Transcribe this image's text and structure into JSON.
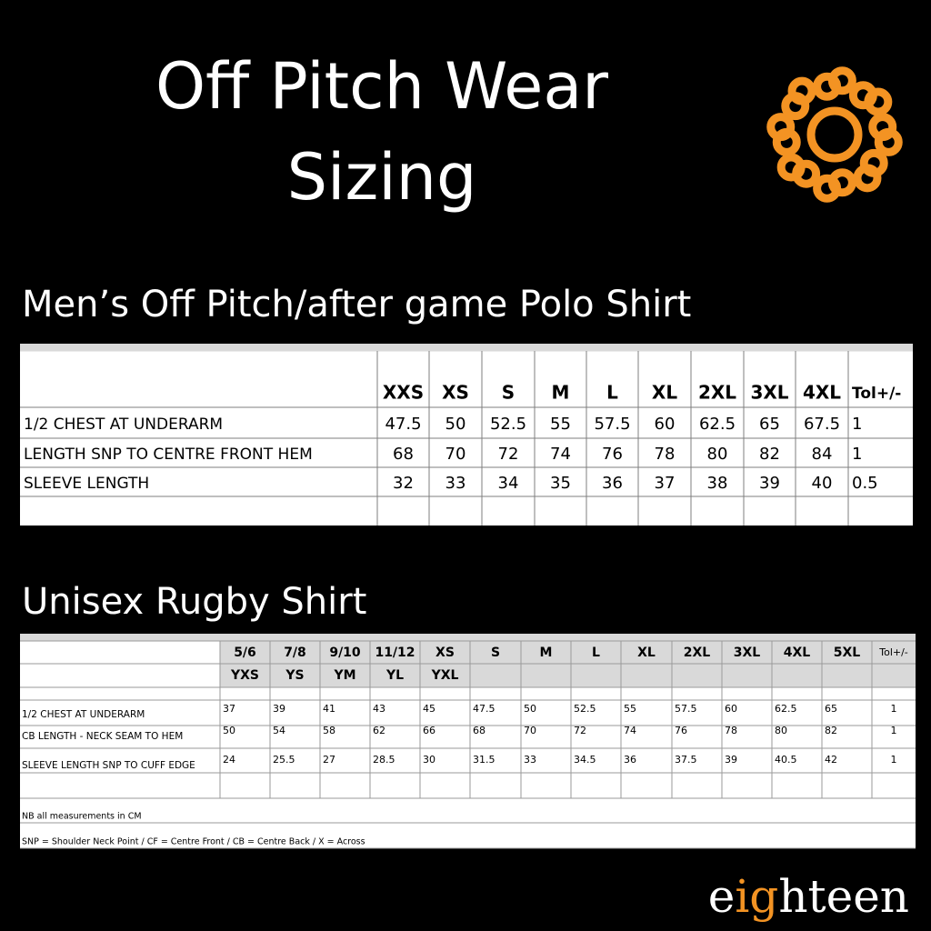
{
  "header": {
    "title_lines": [
      "Off Pitch Wear",
      "Sizing"
    ]
  },
  "tables": [
    {
      "title": "Men’s Off Pitch/after game Polo Shirt",
      "columns": [
        "XXS",
        "XS",
        "S",
        "M",
        "L",
        "XL",
        "2XL",
        "3XL",
        "4XL",
        "Tol+/-"
      ],
      "rows": [
        {
          "label": "1/2 CHEST AT UNDERARM",
          "values": [
            47.5,
            50,
            52.5,
            55,
            57.5,
            60,
            62.5,
            65,
            67.5,
            1
          ]
        },
        {
          "label": "LENGTH SNP TO CENTRE FRONT HEM",
          "values": [
            68,
            70,
            72,
            74,
            76,
            78,
            80,
            82,
            84,
            1
          ]
        },
        {
          "label": "SLEEVE LENGTH",
          "values": [
            32,
            33,
            34,
            35,
            36,
            37,
            38,
            39,
            40,
            0.5
          ]
        }
      ]
    },
    {
      "title": "Unisex Rugby Shirt",
      "columns": [
        "5/6",
        "7/8",
        "9/10",
        "11/12",
        "XS",
        "S",
        "M",
        "L",
        "XL",
        "2XL",
        "3XL",
        "4XL",
        "5XL",
        "Tol+/-"
      ],
      "youth_sizes": [
        "YXS",
        "YS",
        "YM",
        "YL",
        "YXL"
      ],
      "rows": [
        {
          "label": "1/2 CHEST AT UNDERARM",
          "values": [
            37,
            39,
            41,
            43,
            45,
            47.5,
            50,
            52.5,
            55,
            57.5,
            60,
            62.5,
            65,
            1
          ]
        },
        {
          "label": "CB LENGTH - NECK SEAM TO HEM",
          "values": [
            50,
            54,
            58,
            62,
            66,
            68,
            70,
            72,
            74,
            76,
            78,
            80,
            82,
            1
          ]
        },
        {
          "label": "SLEEVE LENGTH SNP TO CUFF EDGE",
          "values": [
            24,
            25.5,
            27,
            28.5,
            30,
            31.5,
            33,
            34.5,
            36,
            37.5,
            39,
            40.5,
            42,
            1
          ]
        }
      ],
      "notes": [
        "NB all measurements in CM",
        "SNP = Shoulder Neck Point / CF = Centre Front / CB = Centre Back / X = Across"
      ]
    }
  ],
  "footer": {
    "brand_parts": [
      "e",
      "ig",
      "hteen"
    ]
  }
}
